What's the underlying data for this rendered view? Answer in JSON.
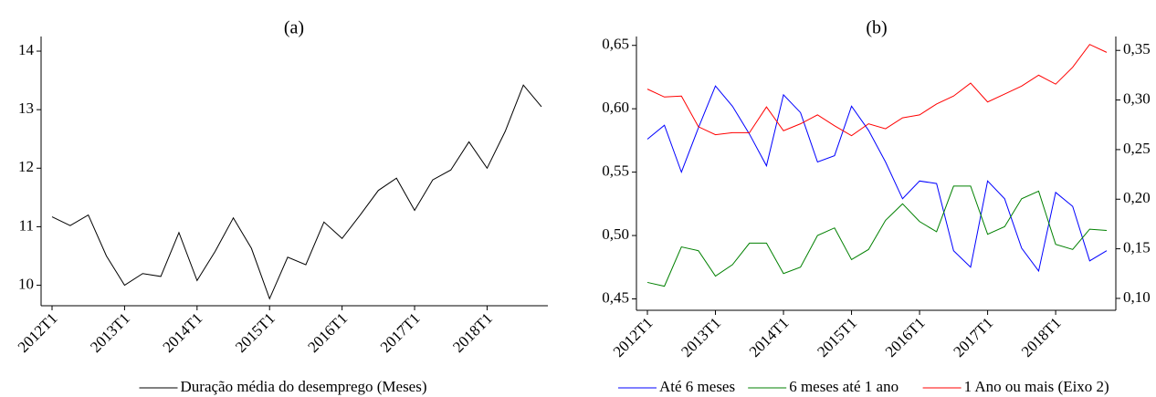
{
  "chart_data": [
    {
      "type": "line",
      "title": "(a)",
      "categories": [
        "2012T1",
        null,
        null,
        null,
        "2013T1",
        null,
        null,
        null,
        "2014T1",
        null,
        null,
        null,
        "2015T1",
        null,
        null,
        null,
        "2016T1",
        null,
        null,
        null,
        "2017T1",
        null,
        null,
        null,
        "2018T1",
        null,
        null,
        null
      ],
      "series": [
        {
          "name": "Duração média do desemprego (Meses)",
          "color": "#000000",
          "values": [
            11.17,
            11.02,
            11.2,
            10.5,
            10.0,
            10.2,
            10.15,
            10.9,
            10.08,
            10.58,
            11.15,
            10.63,
            9.77,
            10.48,
            10.35,
            11.08,
            10.8,
            11.2,
            11.62,
            11.83,
            11.28,
            11.8,
            11.97,
            12.45,
            12.0,
            12.63,
            13.42,
            13.05
          ]
        }
      ],
      "ylim": [
        9.65,
        14.25
      ],
      "yticks": [
        10,
        11,
        12,
        13,
        14
      ]
    },
    {
      "type": "line",
      "title": "(b)",
      "categories": [
        "2012T1",
        null,
        null,
        null,
        "2013T1",
        null,
        null,
        null,
        "2014T1",
        null,
        null,
        null,
        "2015T1",
        null,
        null,
        null,
        "2016T1",
        null,
        null,
        null,
        "2017T1",
        null,
        null,
        null,
        "2018T1",
        null,
        null,
        null
      ],
      "series": [
        {
          "name": "Até 6 meses",
          "color": "#0000ff",
          "values": [
            0.576,
            0.587,
            0.55,
            0.585,
            0.618,
            0.602,
            0.58,
            0.555,
            0.611,
            0.597,
            0.558,
            0.563,
            0.602,
            0.583,
            0.558,
            0.529,
            0.543,
            0.541,
            0.488,
            0.475,
            0.543,
            0.529,
            0.49,
            0.472,
            0.534,
            0.523,
            0.48,
            0.488
          ]
        },
        {
          "name": "6 meses até 1 ano",
          "color": "#008000",
          "values": [
            0.463,
            0.46,
            0.491,
            0.488,
            0.468,
            0.477,
            0.494,
            0.494,
            0.47,
            0.475,
            0.5,
            0.506,
            0.481,
            0.489,
            0.512,
            0.525,
            0.511,
            0.503,
            0.539,
            0.539,
            0.501,
            0.507,
            0.529,
            0.535,
            0.493,
            0.489,
            0.505,
            0.504
          ]
        },
        {
          "name": "1 Ano ou mais (Eixo 2)",
          "color": "#ff0000",
          "axis": "y2",
          "values": [
            0.311,
            0.303,
            0.304,
            0.273,
            0.265,
            0.267,
            0.267,
            0.293,
            0.269,
            0.276,
            0.285,
            0.274,
            0.264,
            0.276,
            0.271,
            0.282,
            0.285,
            0.296,
            0.304,
            0.317,
            0.298,
            0.306,
            0.314,
            0.325,
            0.316,
            0.333,
            0.356,
            0.348
          ]
        }
      ],
      "ylim": [
        0.441,
        0.657
      ],
      "yticks": [
        {
          "value": 0.45,
          "label": "0,45"
        },
        {
          "value": 0.5,
          "label": "0,50"
        },
        {
          "value": 0.55,
          "label": "0,55"
        },
        {
          "value": 0.6,
          "label": "0,60"
        },
        {
          "value": 0.65,
          "label": "0,65"
        }
      ],
      "y2lim": [
        0.088,
        0.364
      ],
      "y2ticks": [
        {
          "value": 0.1,
          "label": "0,10"
        },
        {
          "value": 0.15,
          "label": "0,15"
        },
        {
          "value": 0.2,
          "label": "0,20"
        },
        {
          "value": 0.25,
          "label": "0,25"
        },
        {
          "value": 0.3,
          "label": "0,30"
        },
        {
          "value": 0.35,
          "label": "0,35"
        }
      ]
    }
  ]
}
